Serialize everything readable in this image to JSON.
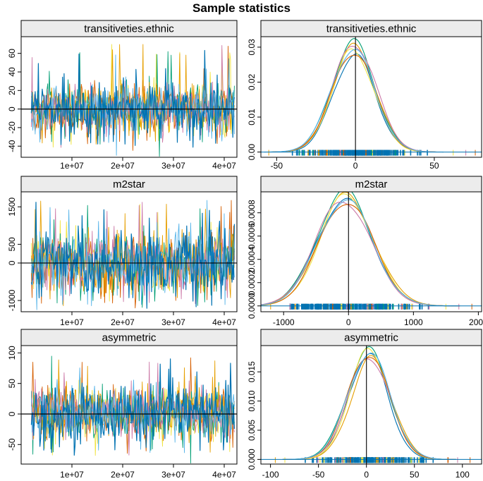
{
  "title": "Sample statistics",
  "colors": {
    "series": [
      "#0072b2",
      "#009e73",
      "#e69f00",
      "#f0e442",
      "#cc79a7",
      "#d55e00",
      "#56b4e9"
    ],
    "strip_bg": "#ececec",
    "frame": "#000000",
    "zero_line": "#000000"
  },
  "chart_data": [
    {
      "type": "line",
      "panel": "trace",
      "strip": "transitiveties.ethnic",
      "xlim": [
        0,
        42500000
      ],
      "ylim": [
        -52,
        78
      ],
      "xticks": [
        10000000,
        20000000,
        30000000,
        40000000
      ],
      "xtick_labels": [
        "1e+07",
        "2e+07",
        "3e+07",
        "4e+07"
      ],
      "yticks": [
        -40,
        -20,
        0,
        20,
        40,
        60
      ],
      "ytick_labels": [
        "-40",
        "-20",
        "0",
        "20",
        "40",
        "60"
      ],
      "x_start": 2000000,
      "x_end": 42000000,
      "center": 0,
      "sd": 14,
      "spike_max": 70,
      "spike_min": -45,
      "hline": 0
    },
    {
      "type": "line",
      "panel": "density",
      "strip": "transitiveties.ethnic",
      "xlim": [
        -60,
        80
      ],
      "ylim": [
        -0.0015,
        0.033
      ],
      "xticks": [
        -50,
        0,
        50
      ],
      "xtick_labels": [
        "-50",
        "0",
        "50"
      ],
      "yticks": [
        0,
        0.01,
        0.02,
        0.03
      ],
      "ytick_labels": [
        "0.00",
        "0.01",
        "0.02",
        "0.03"
      ],
      "center": -1,
      "sd": 13.5,
      "peak": 0.0295,
      "vline": 0,
      "rug_range": [
        -40,
        60
      ],
      "rug_outliers": [
        -55,
        62,
        70,
        76
      ]
    },
    {
      "type": "line",
      "panel": "trace",
      "strip": "m2star",
      "xlim": [
        0,
        42500000
      ],
      "ylim": [
        -1300,
        1900
      ],
      "xticks": [
        10000000,
        20000000,
        30000000,
        40000000
      ],
      "xtick_labels": [
        "1e+07",
        "2e+07",
        "3e+07",
        "4e+07"
      ],
      "yticks": [
        -1000,
        0,
        500,
        1500
      ],
      "ytick_labels": [
        "-1000",
        "0",
        "500",
        "1500"
      ],
      "x_start": 2000000,
      "x_end": 42000000,
      "center": 0,
      "sd": 420,
      "spike_max": 1800,
      "spike_min": -1150,
      "hline": 0
    },
    {
      "type": "line",
      "panel": "density",
      "strip": "m2star",
      "xlim": [
        -1350,
        2050
      ],
      "ylim": [
        -5e-05,
        0.00098
      ],
      "xticks": [
        -1000,
        0,
        1000,
        2000
      ],
      "xtick_labels": [
        "-1000",
        "0",
        "1000",
        "2000"
      ],
      "yticks": [
        0,
        0.0002,
        0.0004,
        0.0006,
        0.0008
      ],
      "ytick_labels": [
        "0.0000",
        "0.0002",
        "0.0004",
        "0.0006",
        "0.0008"
      ],
      "center": -50,
      "sd": 420,
      "peak": 0.00093,
      "vline": 0,
      "rug_range": [
        -900,
        1400
      ],
      "rug_outliers": [
        -1200,
        1500,
        1700,
        1900
      ]
    },
    {
      "type": "line",
      "panel": "trace",
      "strip": "asymmetric",
      "xlim": [
        0,
        42500000
      ],
      "ylim": [
        -82,
        112
      ],
      "xticks": [
        10000000,
        20000000,
        30000000,
        40000000
      ],
      "xtick_labels": [
        "1e+07",
        "2e+07",
        "3e+07",
        "4e+07"
      ],
      "yticks": [
        -50,
        0,
        50,
        100
      ],
      "ytick_labels": [
        "-50",
        "0",
        "50",
        "100"
      ],
      "x_start": 2000000,
      "x_end": 42000000,
      "center": 2,
      "sd": 22,
      "spike_max": 95,
      "spike_min": -70,
      "hline": 0
    },
    {
      "type": "line",
      "panel": "density",
      "strip": "asymmetric",
      "xlim": [
        -110,
        120
      ],
      "ylim": [
        -0.0008,
        0.0195
      ],
      "xticks": [
        -100,
        -50,
        0,
        50,
        100
      ],
      "xtick_labels": [
        "-100",
        "-50",
        "0",
        "50",
        "100"
      ],
      "yticks": [
        0,
        0.005,
        0.01,
        0.015
      ],
      "ytick_labels": [
        "0.000",
        "0.005",
        "0.010",
        "0.015"
      ],
      "center": 3,
      "sd": 21.5,
      "peak": 0.0183,
      "vline": 0,
      "rug_range": [
        -70,
        85
      ],
      "rug_outliers": [
        -95,
        -85,
        95,
        108
      ]
    }
  ]
}
